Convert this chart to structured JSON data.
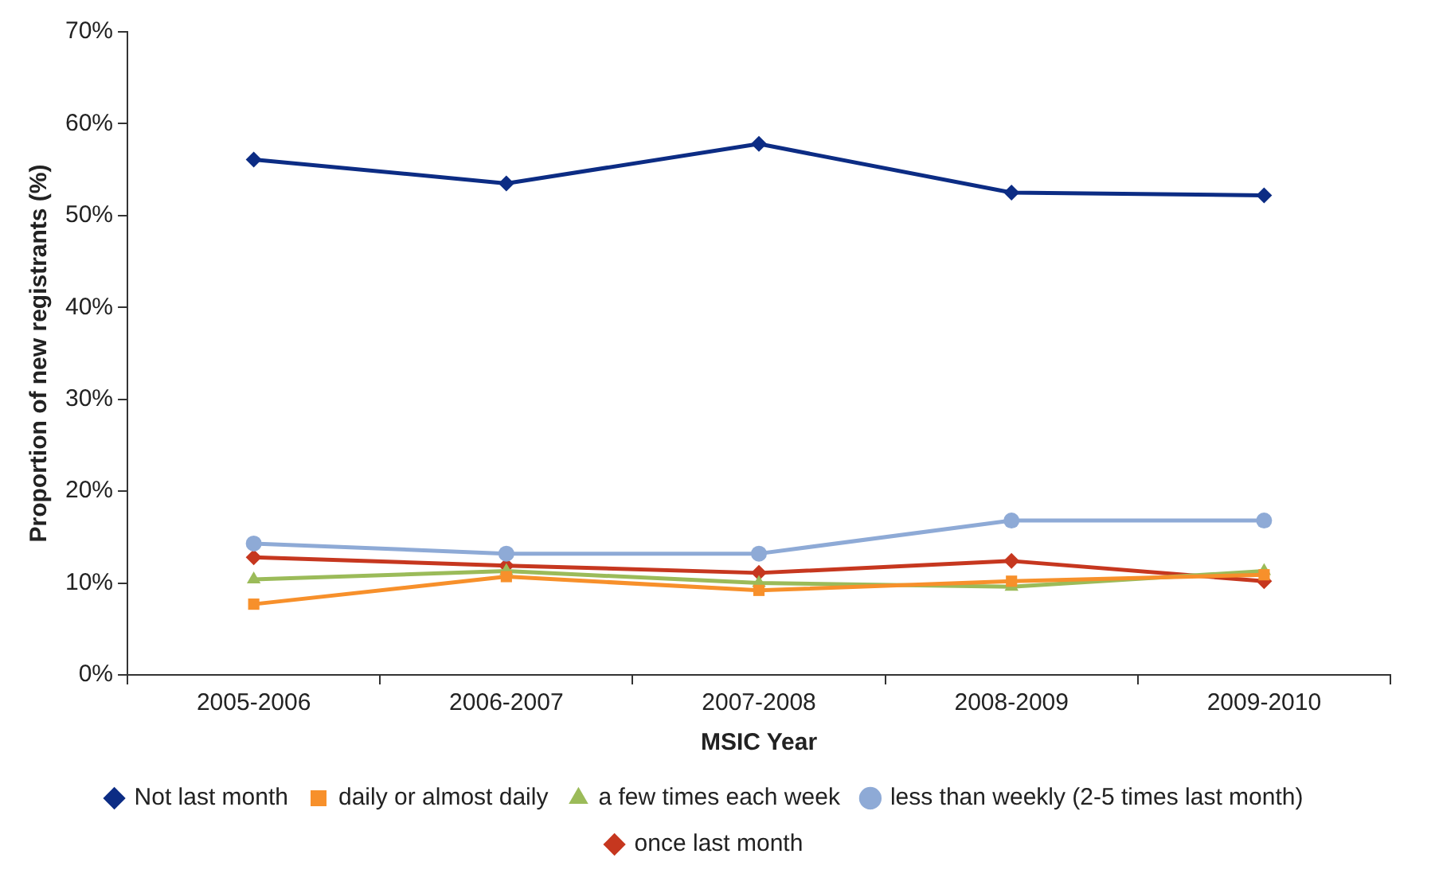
{
  "chart_data": {
    "type": "line",
    "xlabel": "MSIC Year",
    "ylabel": "Proportion of new registrants (%)",
    "categories": [
      "2005-2006",
      "2006-2007",
      "2007-2008",
      "2008-2009",
      "2009-2010"
    ],
    "series": [
      {
        "name": "Not last month",
        "color": "#0c2c84",
        "marker": "diamond",
        "values": [
          56.1,
          53.5,
          57.8,
          52.5,
          52.2
        ]
      },
      {
        "name": "daily or almost daily",
        "color": "#f7902b",
        "marker": "square",
        "values": [
          7.7,
          10.7,
          9.2,
          10.2,
          10.9
        ]
      },
      {
        "name": "a few times each week",
        "color": "#9bbb59",
        "marker": "triangle",
        "values": [
          10.4,
          11.3,
          10.0,
          9.6,
          11.3
        ]
      },
      {
        "name": "less than weekly (2-5 times last month)",
        "color": "#8eaad6",
        "marker": "circle",
        "values": [
          14.3,
          13.2,
          13.2,
          16.8,
          16.8
        ]
      },
      {
        "name": "once last month",
        "color": "#c6371f",
        "marker": "diamond",
        "values": [
          12.8,
          11.9,
          11.1,
          12.4,
          10.2
        ]
      }
    ],
    "ylim": [
      0,
      70
    ],
    "yticks": [
      {
        "value": 0,
        "label": "0%"
      },
      {
        "value": 10,
        "label": "10%"
      },
      {
        "value": 20,
        "label": "20%"
      },
      {
        "value": 30,
        "label": "30%"
      },
      {
        "value": 40,
        "label": "40%"
      },
      {
        "value": 50,
        "label": "50%"
      },
      {
        "value": 60,
        "label": "60%"
      },
      {
        "value": 70,
        "label": "70%"
      }
    ],
    "grid": false,
    "legend": "bottom",
    "line_style": "solid"
  }
}
